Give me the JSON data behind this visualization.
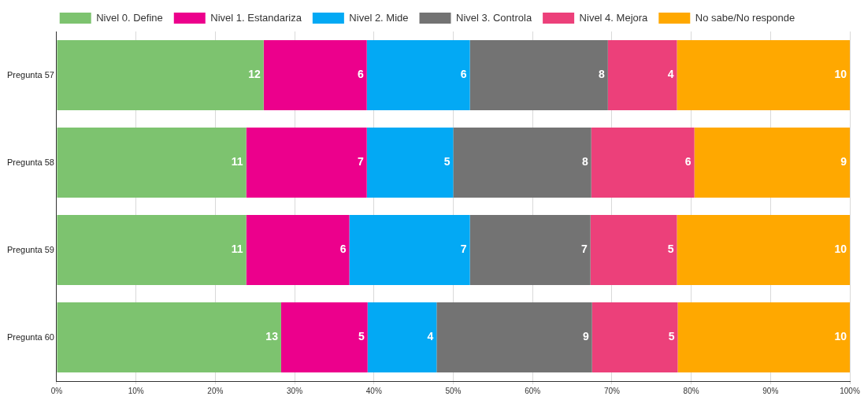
{
  "chart_data": {
    "type": "bar",
    "orientation": "horizontal",
    "stacked": true,
    "categories": [
      "Pregunta 57",
      "Pregunta 58",
      "Pregunta 59",
      "Pregunta 60"
    ],
    "series": [
      {
        "name": "Nivel 0. Define",
        "color": "#7dc36f",
        "values": [
          26.1,
          23.9,
          23.9,
          28.3
        ]
      },
      {
        "name": "Nivel 1. Estandariza",
        "color": "#ec008c",
        "values": [
          13.0,
          15.2,
          13.0,
          10.9
        ]
      },
      {
        "name": "Nivel 2. Mide",
        "color": "#03a9f4",
        "values": [
          13.0,
          10.9,
          15.2,
          8.7
        ]
      },
      {
        "name": "Nivel 3. Controla",
        "color": "#737373",
        "values": [
          17.4,
          17.4,
          15.2,
          19.6
        ]
      },
      {
        "name": "Nivel 4. Mejora",
        "color": "#ec407a",
        "values": [
          8.7,
          13.0,
          10.9,
          10.8
        ]
      },
      {
        "name": "No sabe/No responde",
        "color": "#ffa800",
        "values": [
          21.8,
          19.6,
          21.8,
          21.7
        ]
      }
    ],
    "annotations": [
      {
        "text": "12",
        "x": 26.1,
        "y": "Pregunta 57"
      },
      {
        "text": "6",
        "x": 39.1,
        "y": "Pregunta 57"
      },
      {
        "text": "6",
        "x": 52.1,
        "y": "Pregunta 57"
      },
      {
        "text": "8",
        "x": 69.5,
        "y": "Pregunta 57"
      },
      {
        "text": "4",
        "x": 78.2,
        "y": "Pregunta 57"
      },
      {
        "text": "10",
        "x": 100,
        "y": "Pregunta 57"
      },
      {
        "text": "11",
        "x": 23.9,
        "y": "Pregunta 58"
      },
      {
        "text": "7",
        "x": 39.1,
        "y": "Pregunta 58"
      },
      {
        "text": "5",
        "x": 50.0,
        "y": "Pregunta 58"
      },
      {
        "text": "8",
        "x": 67.4,
        "y": "Pregunta 58"
      },
      {
        "text": "6",
        "x": 80.4,
        "y": "Pregunta 58"
      },
      {
        "text": "9",
        "x": 100,
        "y": "Pregunta 58"
      },
      {
        "text": "11",
        "x": 23.9,
        "y": "Pregunta 59"
      },
      {
        "text": "6",
        "x": 36.9,
        "y": "Pregunta 59"
      },
      {
        "text": "7",
        "x": 52.1,
        "y": "Pregunta 59"
      },
      {
        "text": "7",
        "x": 67.3,
        "y": "Pregunta 59"
      },
      {
        "text": "5",
        "x": 78.2,
        "y": "Pregunta 59"
      },
      {
        "text": "10",
        "x": 100,
        "y": "Pregunta 59"
      },
      {
        "text": "13",
        "x": 28.3,
        "y": "Pregunta 60"
      },
      {
        "text": "5",
        "x": 39.2,
        "y": "Pregunta 60"
      },
      {
        "text": "4",
        "x": 47.9,
        "y": "Pregunta 60"
      },
      {
        "text": "9",
        "x": 67.5,
        "y": "Pregunta 60"
      },
      {
        "text": "5",
        "x": 78.3,
        "y": "Pregunta 60"
      },
      {
        "text": "10",
        "x": 100,
        "y": "Pregunta 60"
      }
    ],
    "xlim": [
      0,
      100
    ],
    "xticks": [
      {
        "value": 0,
        "label": "0%"
      },
      {
        "value": 10,
        "label": "10%"
      },
      {
        "value": 20,
        "label": "20%"
      },
      {
        "value": 30,
        "label": "30%"
      },
      {
        "value": 40,
        "label": "40%"
      },
      {
        "value": 50,
        "label": "50%"
      },
      {
        "value": 60,
        "label": "60%"
      },
      {
        "value": 70,
        "label": "70%"
      },
      {
        "value": 80,
        "label": "80%"
      },
      {
        "value": 90,
        "label": "90%"
      },
      {
        "value": 100,
        "label": "100%"
      }
    ],
    "grid": "x",
    "legend": "top"
  }
}
